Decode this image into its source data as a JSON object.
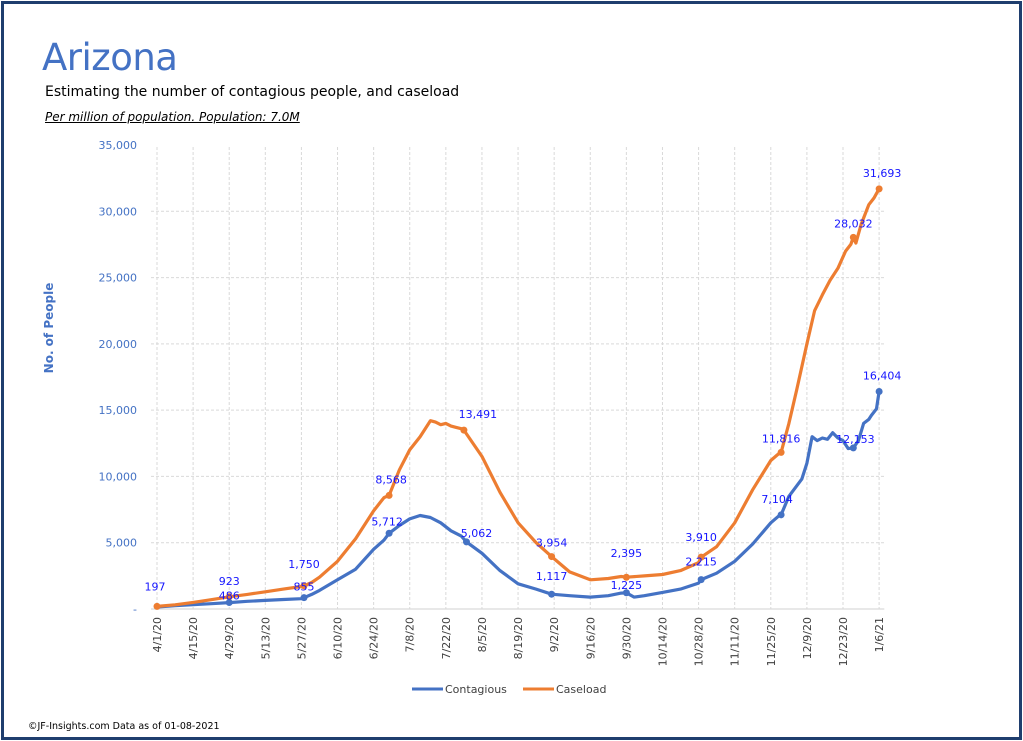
{
  "header": {
    "title": "Arizona",
    "subtitle": "Estimating  the number of contagious people, and caseload",
    "note": "Per million of population.  Population: 7.0M"
  },
  "footer": "©JF-Insights.com  Data as of 01-08-2021",
  "chart_data": {
    "type": "line",
    "title": "Arizona",
    "xlabel": "",
    "ylabel": "No. of People",
    "ylim": [
      0,
      35000
    ],
    "yticks": [
      0,
      5000,
      10000,
      15000,
      20000,
      25000,
      30000,
      35000
    ],
    "ytick_labels": [
      "-",
      "5,000",
      "10,000",
      "15,000",
      "20,000",
      "25,000",
      "30,000",
      "35,000"
    ],
    "x_unit": "days since 4/1/20",
    "xlim": [
      0,
      282
    ],
    "xtick_days": [
      0,
      14,
      28,
      42,
      56,
      70,
      84,
      98,
      112,
      126,
      140,
      154,
      168,
      182,
      196,
      210,
      224,
      238,
      252,
      266,
      280
    ],
    "xtick_labels": [
      "4/1/20",
      "4/15/20",
      "4/29/20",
      "5/13/20",
      "5/27/20",
      "6/10/20",
      "6/24/20",
      "7/8/20",
      "7/22/20",
      "8/5/20",
      "8/19/20",
      "9/2/20",
      "9/16/20",
      "9/30/20",
      "10/14/20",
      "10/28/20",
      "11/11/20",
      "11/25/20",
      "12/9/20",
      "12/23/20",
      "1/6/21"
    ],
    "grid": true,
    "legend": "bottom-center",
    "series": [
      {
        "name": "Contagious",
        "color": "#4472c4",
        "x": [
          0,
          7,
          14,
          21,
          28,
          35,
          42,
          49,
          56,
          57,
          60,
          63,
          70,
          77,
          84,
          88,
          90,
          94,
          98,
          102,
          106,
          110,
          114,
          118,
          120,
          126,
          133,
          140,
          147,
          153,
          160,
          168,
          175,
          180,
          182,
          185,
          189,
          196,
          203,
          210,
          211,
          217,
          224,
          231,
          238,
          241,
          242,
          245,
          250,
          252,
          254,
          256,
          258,
          260,
          262,
          264,
          266,
          268,
          270,
          272,
          274,
          276,
          277,
          279,
          280
        ],
        "y": [
          150,
          250,
          330,
          400,
          486,
          580,
          650,
          720,
          780,
          855,
          1100,
          1400,
          2200,
          3000,
          4500,
          5200,
          5712,
          6300,
          6800,
          7050,
          6900,
          6500,
          5900,
          5500,
          5062,
          4200,
          2900,
          1900,
          1500,
          1117,
          1000,
          900,
          1000,
          1200,
          1225,
          900,
          1000,
          1250,
          1500,
          1950,
          2215,
          2700,
          3600,
          4900,
          6500,
          7000,
          7104,
          8500,
          9800,
          11000,
          13000,
          12700,
          12900,
          12800,
          13300,
          12900,
          12700,
          12100,
          12153,
          12700,
          14000,
          14300,
          14600,
          15100,
          16404
        ]
      },
      {
        "name": "Caseload",
        "color": "#ed7d31",
        "x": [
          0,
          7,
          14,
          21,
          28,
          35,
          42,
          49,
          56,
          57,
          60,
          63,
          70,
          77,
          84,
          88,
          90,
          94,
          98,
          102,
          106,
          108,
          110,
          112,
          114,
          116,
          118,
          119,
          126,
          133,
          140,
          147,
          153,
          160,
          168,
          175,
          180,
          182,
          189,
          196,
          203,
          210,
          211,
          217,
          224,
          231,
          238,
          241,
          242,
          245,
          248,
          252,
          255,
          258,
          261,
          264,
          267,
          269,
          270,
          271,
          273,
          276,
          278,
          280
        ],
        "y": [
          197,
          320,
          500,
          700,
          923,
          1100,
          1300,
          1500,
          1700,
          1750,
          2000,
          2400,
          3600,
          5300,
          7400,
          8400,
          8568,
          10500,
          12000,
          13000,
          14200,
          14100,
          13900,
          14000,
          13800,
          13700,
          13600,
          13491,
          11500,
          8800,
          6500,
          5000,
          3954,
          2800,
          2200,
          2300,
          2450,
          2395,
          2500,
          2600,
          2900,
          3500,
          3910,
          4700,
          6500,
          9000,
          11200,
          11700,
          11816,
          14000,
          16500,
          20000,
          22500,
          23700,
          24800,
          25700,
          27000,
          27500,
          28032,
          27600,
          29000,
          30500,
          31000,
          31693
        ]
      }
    ],
    "data_labels": [
      {
        "series": "Caseload",
        "x": 0,
        "value": 197,
        "text": "197"
      },
      {
        "series": "Caseload",
        "x": 28,
        "value": 923,
        "text": "923"
      },
      {
        "series": "Contagious",
        "x": 28,
        "value": 486,
        "text": "486"
      },
      {
        "series": "Caseload",
        "x": 57,
        "value": 1750,
        "text": "1,750"
      },
      {
        "series": "Contagious",
        "x": 57,
        "value": 855,
        "text": "855"
      },
      {
        "series": "Caseload",
        "x": 90,
        "value": 8568,
        "text": "8,568"
      },
      {
        "series": "Contagious",
        "x": 90,
        "value": 5712,
        "text": "5,712"
      },
      {
        "series": "Caseload",
        "x": 119,
        "value": 13491,
        "text": "13,491"
      },
      {
        "series": "Contagious",
        "x": 120,
        "value": 5062,
        "text": "5,062"
      },
      {
        "series": "Caseload",
        "x": 153,
        "value": 3954,
        "text": "3,954"
      },
      {
        "series": "Contagious",
        "x": 153,
        "value": 1117,
        "text": "1,117"
      },
      {
        "series": "Caseload",
        "x": 182,
        "value": 2395,
        "text": "2,395"
      },
      {
        "series": "Contagious",
        "x": 182,
        "value": 1225,
        "text": "1,225"
      },
      {
        "series": "Caseload",
        "x": 211,
        "value": 3910,
        "text": "3,910"
      },
      {
        "series": "Contagious",
        "x": 211,
        "value": 2215,
        "text": "2,215"
      },
      {
        "series": "Caseload",
        "x": 242,
        "value": 11816,
        "text": "11,816"
      },
      {
        "series": "Contagious",
        "x": 242,
        "value": 7104,
        "text": "7,104"
      },
      {
        "series": "Caseload",
        "x": 270,
        "value": 28032,
        "text": "28,032"
      },
      {
        "series": "Contagious",
        "x": 270,
        "value": 12153,
        "text": "12,153"
      },
      {
        "series": "Caseload",
        "x": 280,
        "value": 31693,
        "text": "31,693"
      },
      {
        "series": "Contagious",
        "x": 280,
        "value": 16404,
        "text": "16,404"
      }
    ]
  }
}
